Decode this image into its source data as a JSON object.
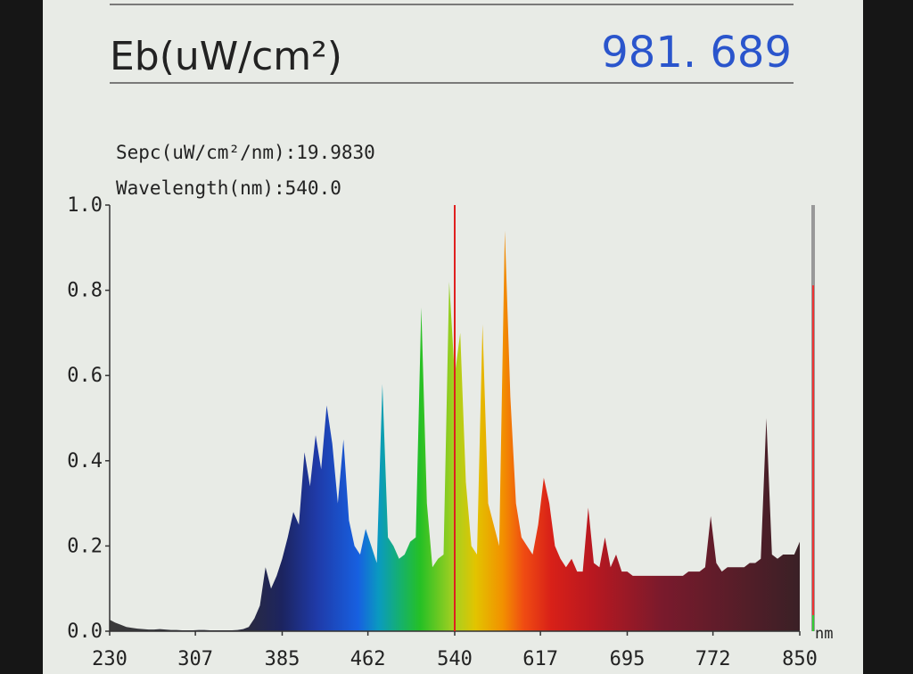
{
  "chart_data": {
    "type": "area",
    "title": "Eb(uW/cm²)",
    "headline_value": "981. 689",
    "annotations": [
      "Sepc(uW/cm²/nm):19.9830",
      "Wavelength(nm):540.0"
    ],
    "x_label": "nm",
    "cursor": 540,
    "xlim": [
      230,
      850
    ],
    "ylim": [
      0,
      1
    ],
    "xticks": [
      230,
      307,
      385,
      462,
      540,
      617,
      695,
      772,
      850
    ],
    "yticks": [
      {
        "value": 0,
        "label": "0.0"
      },
      {
        "value": 0.2,
        "label": "0.2"
      },
      {
        "value": 0.4,
        "label": "0.4"
      },
      {
        "value": 0.6,
        "label": "0.6"
      },
      {
        "value": 0.8,
        "label": "0.8"
      },
      {
        "value": 1,
        "label": "1.0"
      }
    ],
    "x": [
      230,
      235,
      240,
      245,
      250,
      255,
      260,
      265,
      270,
      275,
      280,
      285,
      290,
      295,
      300,
      305,
      310,
      315,
      320,
      325,
      330,
      335,
      340,
      345,
      350,
      355,
      360,
      365,
      370,
      375,
      380,
      385,
      390,
      395,
      400,
      405,
      410,
      415,
      420,
      425,
      430,
      435,
      440,
      445,
      450,
      455,
      460,
      465,
      470,
      475,
      480,
      485,
      490,
      495,
      500,
      505,
      510,
      515,
      520,
      525,
      530,
      535,
      540,
      545,
      550,
      555,
      560,
      565,
      570,
      575,
      580,
      585,
      590,
      595,
      600,
      605,
      610,
      615,
      620,
      625,
      630,
      635,
      640,
      645,
      650,
      655,
      660,
      665,
      670,
      675,
      680,
      685,
      690,
      695,
      700,
      705,
      710,
      715,
      720,
      725,
      730,
      735,
      740,
      745,
      750,
      755,
      760,
      765,
      770,
      775,
      780,
      785,
      790,
      795,
      800,
      805,
      810,
      815,
      820,
      825,
      830,
      835,
      840,
      845,
      850
    ],
    "values": [
      0.027,
      0.02,
      0.015,
      0.01,
      0.008,
      0.006,
      0.005,
      0.004,
      0.004,
      0.005,
      0.004,
      0.003,
      0.003,
      0.002,
      0.002,
      0.002,
      0.003,
      0.003,
      0.002,
      0.002,
      0.002,
      0.002,
      0.002,
      0.003,
      0.005,
      0.01,
      0.03,
      0.06,
      0.15,
      0.1,
      0.13,
      0.17,
      0.22,
      0.28,
      0.25,
      0.42,
      0.34,
      0.46,
      0.38,
      0.53,
      0.44,
      0.3,
      0.45,
      0.26,
      0.2,
      0.18,
      0.24,
      0.2,
      0.16,
      0.58,
      0.22,
      0.2,
      0.17,
      0.18,
      0.21,
      0.22,
      0.76,
      0.3,
      0.15,
      0.17,
      0.18,
      0.82,
      0.6,
      0.7,
      0.35,
      0.2,
      0.18,
      0.72,
      0.3,
      0.25,
      0.2,
      0.94,
      0.55,
      0.3,
      0.22,
      0.2,
      0.18,
      0.25,
      0.36,
      0.3,
      0.2,
      0.17,
      0.15,
      0.17,
      0.14,
      0.14,
      0.29,
      0.16,
      0.15,
      0.22,
      0.15,
      0.18,
      0.14,
      0.14,
      0.13,
      0.13,
      0.13,
      0.13,
      0.13,
      0.13,
      0.13,
      0.13,
      0.13,
      0.13,
      0.14,
      0.14,
      0.14,
      0.15,
      0.27,
      0.16,
      0.14,
      0.15,
      0.15,
      0.15,
      0.15,
      0.16,
      0.16,
      0.17,
      0.5,
      0.18,
      0.17,
      0.18,
      0.18,
      0.18,
      0.21
    ]
  }
}
